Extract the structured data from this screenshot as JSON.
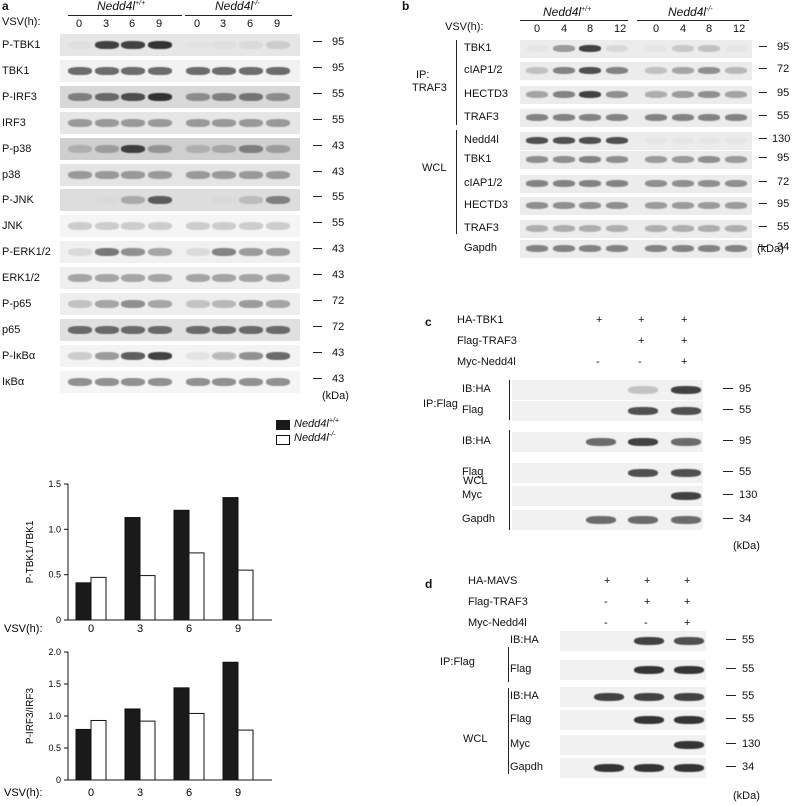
{
  "panels": {
    "a": {
      "letter": "a",
      "vsv_label": "VSV(h):",
      "timepoints": [
        "0",
        "3",
        "6",
        "9",
        "0",
        "3",
        "6",
        "9"
      ],
      "group1": "Nedd4l",
      "group1_sup": "+/+",
      "group2": "Nedd4l",
      "group2_sup": "-/-",
      "rows": [
        {
          "label": "P-TBK1",
          "mw": "95",
          "bg": "#e6e6e6",
          "bands": [
            0.08,
            0.85,
            0.85,
            0.9,
            0.05,
            0.08,
            0.12,
            0.22
          ],
          "faint": false
        },
        {
          "label": "TBK1",
          "mw": "95",
          "bg": "#f2f2f2",
          "bands": [
            0.7,
            0.7,
            0.7,
            0.7,
            0.7,
            0.7,
            0.7,
            0.7
          ],
          "faint": false
        },
        {
          "label": "P-IRF3",
          "mw": "55",
          "bg": "#d8d8d8",
          "bands": [
            0.6,
            0.7,
            0.8,
            0.9,
            0.55,
            0.6,
            0.65,
            0.55
          ],
          "faint": false
        },
        {
          "label": "IRF3",
          "mw": "55",
          "bg": "#e6e6e6",
          "bands": [
            0.5,
            0.5,
            0.5,
            0.5,
            0.5,
            0.5,
            0.5,
            0.5
          ],
          "faint": false
        },
        {
          "label": "P-p38",
          "mw": "43",
          "bg": "#cfcfcf",
          "bands": [
            0.35,
            0.45,
            0.85,
            0.5,
            0.35,
            0.4,
            0.6,
            0.45
          ],
          "faint": false
        },
        {
          "label": "p38",
          "mw": "43",
          "bg": "#e4e4e4",
          "bands": [
            0.5,
            0.5,
            0.5,
            0.5,
            0.5,
            0.5,
            0.5,
            0.5
          ],
          "faint": false
        },
        {
          "label": "P-JNK",
          "mw": "55",
          "bg": "#dddddd",
          "bands": [
            0.05,
            0.1,
            0.4,
            0.75,
            0.05,
            0.1,
            0.3,
            0.6
          ],
          "faint": false
        },
        {
          "label": "JNK",
          "mw": "55",
          "bg": "#f5f5f5",
          "bands": [
            0.25,
            0.25,
            0.25,
            0.25,
            0.25,
            0.25,
            0.25,
            0.25
          ],
          "faint": true
        },
        {
          "label": "P-ERK1/2",
          "mw": "43",
          "bg": "#f0f0f0",
          "bands": [
            0.15,
            0.65,
            0.55,
            0.45,
            0.15,
            0.6,
            0.5,
            0.5
          ],
          "faint": false
        },
        {
          "label": "ERK1/2",
          "mw": "43",
          "bg": "#efefef",
          "bands": [
            0.45,
            0.45,
            0.45,
            0.45,
            0.45,
            0.45,
            0.45,
            0.45
          ],
          "faint": false
        },
        {
          "label": "P-p65",
          "mw": "72",
          "bg": "#eeeeee",
          "bands": [
            0.3,
            0.45,
            0.55,
            0.45,
            0.3,
            0.35,
            0.5,
            0.45
          ],
          "faint": false
        },
        {
          "label": "p65",
          "mw": "72",
          "bg": "#e0e0e0",
          "bands": [
            0.7,
            0.7,
            0.7,
            0.7,
            0.7,
            0.7,
            0.7,
            0.7
          ],
          "faint": false
        },
        {
          "label": "P-IκBα",
          "mw": "43",
          "bg": "#f3f3f3",
          "bands": [
            0.25,
            0.5,
            0.75,
            0.85,
            0.1,
            0.35,
            0.55,
            0.7
          ],
          "faint": false
        },
        {
          "label": "IκBα",
          "mw": "43",
          "bg": "#f5f5f5",
          "bands": [
            0.55,
            0.55,
            0.55,
            0.55,
            0.55,
            0.55,
            0.55,
            0.55
          ],
          "faint": false
        }
      ],
      "kda": "(kDa)"
    },
    "b": {
      "letter": "b",
      "vsv_label": "VSV(h):",
      "timepoints": [
        "0",
        "4",
        "8",
        "12",
        "0",
        "4",
        "8",
        "12"
      ],
      "group1": "Nedd4l",
      "group1_sup": "+/+",
      "group2": "Nedd4l",
      "group2_sup": "-/-",
      "ip_label_1": "IP:",
      "ip_label_2": "TRAF3",
      "wcl_label": "WCL",
      "ip_rows": [
        {
          "label": "TBK1",
          "mw": "95",
          "bands": [
            0.05,
            0.5,
            0.85,
            0.15,
            0.05,
            0.25,
            0.3,
            0.05
          ]
        },
        {
          "label": "cIAP1/2",
          "mw": "72",
          "bands": [
            0.3,
            0.6,
            0.8,
            0.6,
            0.3,
            0.45,
            0.55,
            0.35
          ]
        },
        {
          "label": "HECTD3",
          "mw": "95",
          "bands": [
            0.45,
            0.6,
            0.85,
            0.55,
            0.4,
            0.5,
            0.55,
            0.45
          ]
        },
        {
          "label": "TRAF3",
          "mw": "55",
          "bands": [
            0.6,
            0.6,
            0.6,
            0.6,
            0.6,
            0.6,
            0.6,
            0.6
          ]
        }
      ],
      "wcl_rows": [
        {
          "label": "Nedd4l",
          "mw": "130",
          "bands": [
            0.8,
            0.8,
            0.8,
            0.8,
            0.05,
            0.05,
            0.05,
            0.05
          ]
        },
        {
          "label": "TBK1",
          "mw": "95",
          "bands": [
            0.55,
            0.55,
            0.6,
            0.55,
            0.5,
            0.5,
            0.55,
            0.5
          ]
        },
        {
          "label": "cIAP1/2",
          "mw": "72",
          "bands": [
            0.6,
            0.6,
            0.6,
            0.6,
            0.55,
            0.55,
            0.55,
            0.55
          ]
        },
        {
          "label": "HECTD3",
          "mw": "95",
          "bands": [
            0.55,
            0.55,
            0.55,
            0.55,
            0.5,
            0.5,
            0.5,
            0.5
          ]
        },
        {
          "label": "TRAF3",
          "mw": "55",
          "bands": [
            0.4,
            0.4,
            0.4,
            0.4,
            0.4,
            0.4,
            0.4,
            0.4
          ]
        },
        {
          "label": "Gapdh",
          "mw": "34",
          "bands": [
            0.6,
            0.6,
            0.6,
            0.6,
            0.6,
            0.6,
            0.6,
            0.6
          ]
        }
      ],
      "kda": "(kDa)"
    },
    "c": {
      "letter": "c",
      "conditions": [
        {
          "label": "HA-TBK1",
          "signs": [
            "+",
            "+",
            "+"
          ]
        },
        {
          "label": "Flag-TRAF3",
          "signs": [
            "",
            "+",
            "+"
          ]
        },
        {
          "label": "Myc-Nedd4l",
          "signs": [
            "-",
            "-",
            "+"
          ]
        }
      ],
      "ip_label": "IP:Flag",
      "wcl_label": "WCL",
      "ip_rows": [
        {
          "label": "IB:HA",
          "mw": "95",
          "bands": [
            0.0,
            0.3,
            0.85
          ]
        },
        {
          "label": "Flag",
          "mw": "55",
          "bands": [
            0.0,
            0.8,
            0.8
          ]
        }
      ],
      "wcl_rows": [
        {
          "label": "IB:HA",
          "mw": "95",
          "bands": [
            0.7,
            0.85,
            0.7
          ]
        },
        {
          "label": "Flag",
          "mw": "55",
          "bands": [
            0.0,
            0.8,
            0.8
          ]
        },
        {
          "label": "Myc",
          "mw": "130",
          "bands": [
            0.0,
            0.0,
            0.85
          ]
        },
        {
          "label": "Gapdh",
          "mw": "34",
          "bands": [
            0.7,
            0.7,
            0.7
          ]
        }
      ],
      "kda": "(kDa)"
    },
    "d": {
      "letter": "d",
      "conditions": [
        {
          "label": "HA-MAVS",
          "signs": [
            "+",
            "+",
            "+"
          ]
        },
        {
          "label": "Flag-TRAF3",
          "signs": [
            "-",
            "+",
            "+"
          ]
        },
        {
          "label": "Myc-Nedd4l",
          "signs": [
            "-",
            "-",
            "+"
          ]
        }
      ],
      "ip_label": "IP:Flag",
      "wcl_label": "WCL",
      "ip_rows": [
        {
          "label": "IB:HA",
          "mw": "55",
          "bands": [
            0.0,
            0.85,
            0.8
          ]
        },
        {
          "label": "Flag",
          "mw": "55",
          "bands": [
            0.0,
            0.9,
            0.9
          ]
        }
      ],
      "wcl_rows": [
        {
          "label": "IB:HA",
          "mw": "55",
          "bands": [
            0.85,
            0.85,
            0.85
          ]
        },
        {
          "label": "Flag",
          "mw": "55",
          "bands": [
            0.0,
            0.9,
            0.9
          ]
        },
        {
          "label": "Myc",
          "mw": "130",
          "bands": [
            0.0,
            0.0,
            0.9
          ]
        },
        {
          "label": "Gapdh",
          "mw": "34",
          "bands": [
            0.9,
            0.9,
            0.9
          ]
        }
      ],
      "kda": "(kDa)"
    }
  },
  "chart_data": [
    {
      "type": "bar",
      "categories": [
        "0",
        "3",
        "6",
        "9"
      ],
      "xlabel": "VSV(h):",
      "ylabel": "P-TBK1/TBK1",
      "ylim": [
        0,
        1.5
      ],
      "yticks": [
        "0",
        "0.5",
        "1.0",
        "1.5"
      ],
      "series": [
        {
          "name": "Nedd4l+/+",
          "values": [
            0.41,
            1.13,
            1.21,
            1.35
          ],
          "color": "#1a1a1a"
        },
        {
          "name": "Nedd4l-/-",
          "values": [
            0.47,
            0.49,
            0.74,
            0.55
          ],
          "color": "#ffffff"
        }
      ]
    },
    {
      "type": "bar",
      "categories": [
        "0",
        "3",
        "6",
        "9"
      ],
      "xlabel": "VSV(h):",
      "ylabel": "P-IRF3/IRF3",
      "ylim": [
        0,
        2.0
      ],
      "yticks": [
        "0",
        "0.5",
        "1.0",
        "1.5",
        "2.0"
      ],
      "series": [
        {
          "name": "Nedd4l+/+",
          "values": [
            0.79,
            1.11,
            1.44,
            1.84
          ],
          "color": "#1a1a1a"
        },
        {
          "name": "Nedd4l-/-",
          "values": [
            0.93,
            0.92,
            1.04,
            0.78
          ],
          "color": "#ffffff"
        }
      ]
    }
  ],
  "legend": {
    "entries": [
      {
        "name": "Nedd4l",
        "sup": "+/+"
      },
      {
        "name": "Nedd4l",
        "sup": "-/-"
      }
    ]
  }
}
